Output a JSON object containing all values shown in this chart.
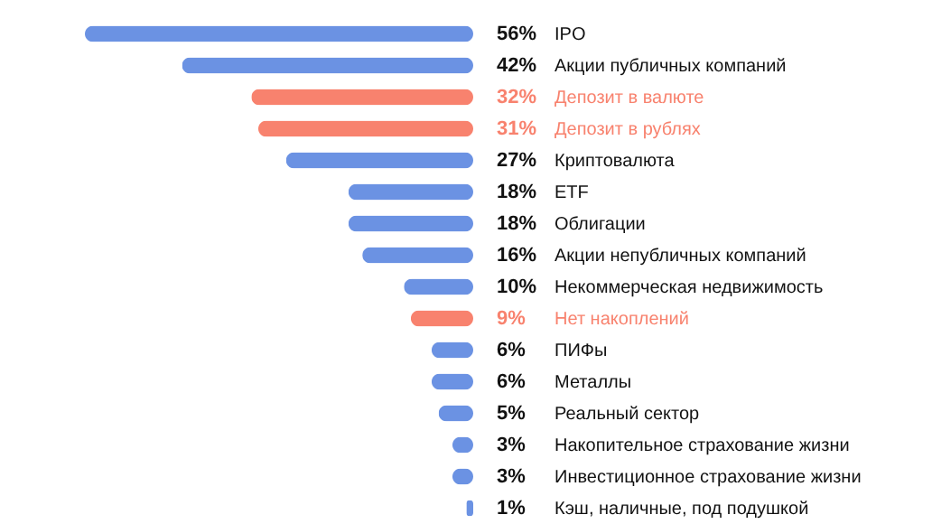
{
  "chart_data": {
    "type": "bar",
    "orientation": "horizontal",
    "categories": [
      "IPO",
      "Акции публичных компаний",
      "Депозит в валюте",
      "Депозит в рублях",
      "Криптовалюта",
      "ETF",
      "Облигации",
      "Акции непубличных компаний",
      "Некоммерческая недвижимость",
      "Нет накоплений",
      "ПИФы",
      "Металлы",
      "Реальный сектор",
      "Накопительное страхование жизни",
      "Инвестиционное страхование жизни",
      "Кэш, наличные, под подушкой"
    ],
    "values": [
      56,
      42,
      32,
      31,
      27,
      18,
      18,
      16,
      10,
      9,
      6,
      6,
      5,
      3,
      3,
      1
    ],
    "value_labels": [
      "56%",
      "42%",
      "32%",
      "31%",
      "27%",
      "18%",
      "18%",
      "16%",
      "10%",
      "9%",
      "6%",
      "6%",
      "5%",
      "3%",
      "3%",
      "1%"
    ],
    "colors": [
      "#6b92e3",
      "#6b92e3",
      "#f8826e",
      "#f8826e",
      "#6b92e3",
      "#6b92e3",
      "#6b92e3",
      "#6b92e3",
      "#6b92e3",
      "#f8826e",
      "#6b92e3",
      "#6b92e3",
      "#6b92e3",
      "#6b92e3",
      "#6b92e3",
      "#6b92e3"
    ]
  }
}
